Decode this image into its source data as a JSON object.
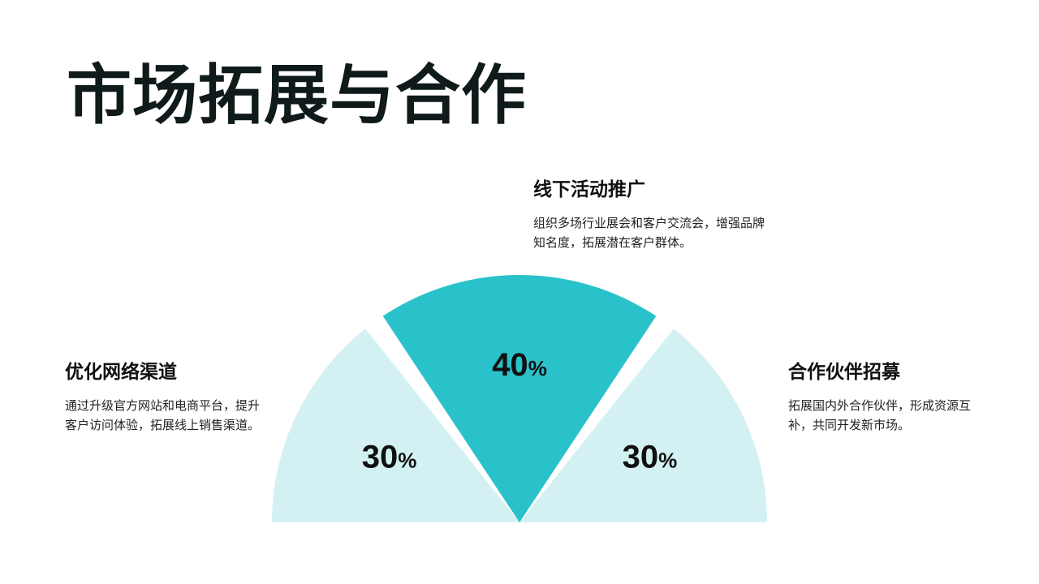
{
  "title": "市场拓展与合作",
  "items": [
    {
      "title": "优化网络渠道",
      "desc": "通过升级官方网站和电商平台，提升客户访问体验，拓展线上销售渠道。"
    },
    {
      "title": "线下活动推广",
      "desc": "组织多场行业展会和客户交流会，增强品牌知名度，拓展潜在客户群体。"
    },
    {
      "title": "合作伙伴招募",
      "desc": "拓展国内外合作伙伴，形成资源互补，共同开发新市场。"
    }
  ],
  "chart_data": {
    "type": "pie",
    "categories": [
      "优化网络渠道",
      "线下活动推广",
      "合作伙伴招募"
    ],
    "values": [
      30,
      40,
      30
    ],
    "labels": [
      "30",
      "40",
      "30"
    ],
    "unit": "%",
    "colors": [
      "#d3f1f3",
      "#2ac2ca",
      "#d3f1f3"
    ]
  }
}
